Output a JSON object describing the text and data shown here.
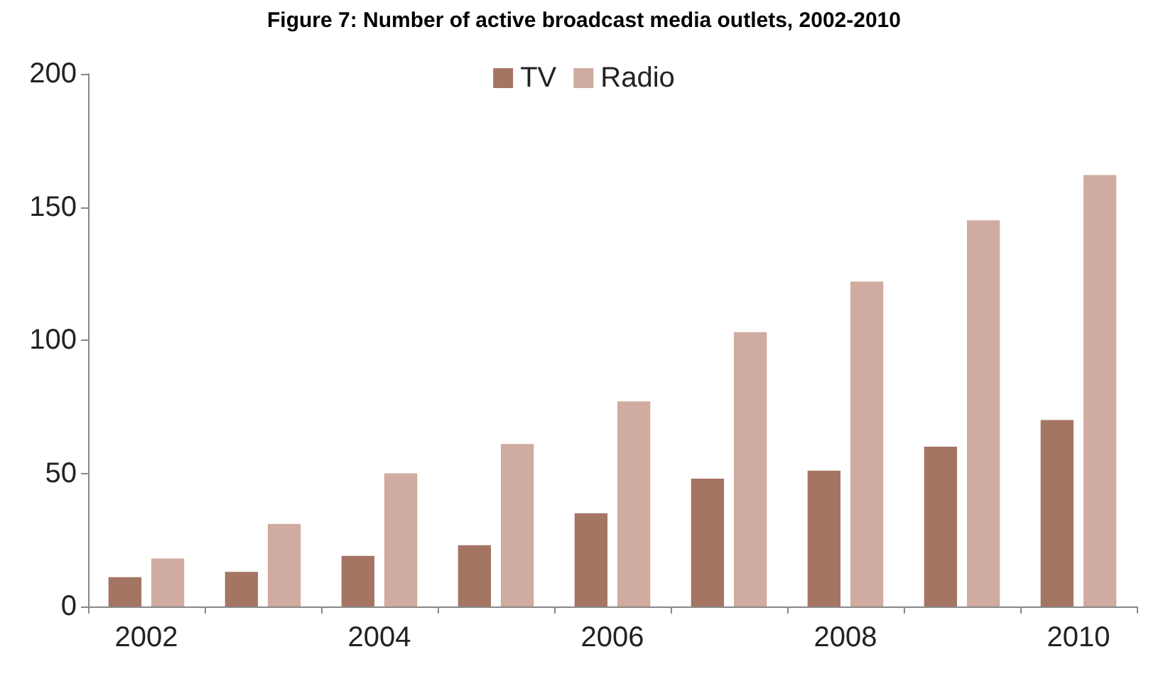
{
  "chart_data": {
    "type": "bar",
    "title": "Figure 7: Number of active broadcast media outlets, 2002-2010",
    "categories": [
      "2002",
      null,
      "2004",
      null,
      "2006",
      null,
      "2008",
      null,
      "2010"
    ],
    "series": [
      {
        "name": "TV",
        "color": "#a57563",
        "values": [
          11,
          13,
          19,
          23,
          35,
          48,
          51,
          60,
          70
        ]
      },
      {
        "name": "Radio",
        "color": "#cfaba0",
        "values": [
          18,
          31,
          50,
          61,
          77,
          103,
          122,
          145,
          162
        ]
      }
    ],
    "ylim": [
      0,
      200
    ],
    "yticks": [
      0,
      50,
      100,
      150,
      200
    ],
    "grid": false,
    "legend": "top"
  }
}
